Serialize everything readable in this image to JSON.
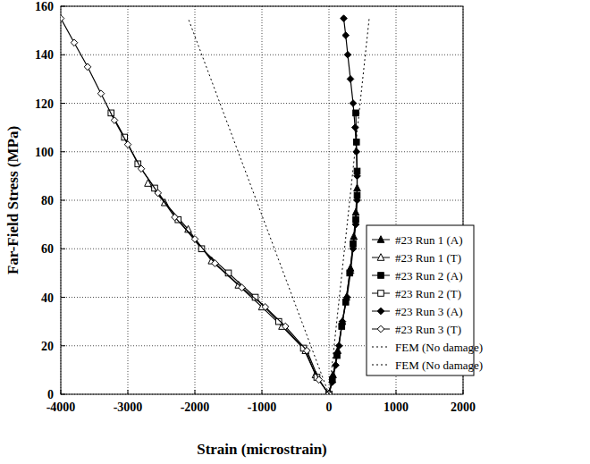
{
  "chart_data": {
    "type": "line",
    "x_label": "Strain (microstrain)",
    "y_label": "Far-Field Stress (MPa)",
    "xlim": [
      -4000,
      2000
    ],
    "xticks": [
      -4000,
      -3000,
      -2000,
      -1000,
      0,
      1000,
      2000
    ],
    "ylim": [
      0,
      160
    ],
    "yticks": [
      0,
      20,
      40,
      60,
      80,
      100,
      120,
      140,
      160
    ],
    "grid": true,
    "legend": "lower right",
    "series": [
      {
        "name": "#23 Run 1 (A)",
        "color": "#000000",
        "marker": "triangle",
        "line_style": "solid",
        "x": [
          0,
          60,
          130,
          200,
          260,
          320,
          370,
          400,
          420
        ],
        "values": [
          0,
          8,
          18,
          30,
          40,
          52,
          65,
          75,
          85
        ]
      },
      {
        "name": "#23 Run 1 (T)",
        "color": "#000000",
        "marker": "triangle-open",
        "line_style": "solid",
        "x": [
          0,
          -200,
          -350,
          -700,
          -1000,
          -1350,
          -1750,
          -2100,
          -2450,
          -2700
        ],
        "values": [
          0,
          8,
          18,
          28,
          36,
          45,
          55,
          68,
          79,
          87
        ]
      },
      {
        "name": "#23 Run 2 (A)",
        "color": "#000000",
        "marker": "square",
        "line_style": "solid",
        "x": [
          0,
          50,
          120,
          190,
          250,
          310,
          360,
          400,
          420,
          420,
          410,
          400
        ],
        "values": [
          0,
          6,
          16,
          28,
          38,
          50,
          62,
          72,
          82,
          92,
          104,
          116
        ]
      },
      {
        "name": "#23 Run 2 (T)",
        "color": "#000000",
        "marker": "square-open",
        "line_style": "solid",
        "x": [
          0,
          -180,
          -380,
          -750,
          -1100,
          -1500,
          -1900,
          -2250,
          -2600,
          -2850,
          -3050,
          -3250
        ],
        "values": [
          0,
          7,
          19,
          30,
          40,
          50,
          60,
          72,
          85,
          95,
          106,
          116
        ]
      },
      {
        "name": "#23 Run 3 (A)",
        "color": "#000000",
        "marker": "diamond",
        "line_style": "solid",
        "x": [
          0,
          50,
          100,
          150,
          200,
          270,
          320,
          360,
          400,
          420,
          420,
          410,
          390,
          360,
          320,
          280,
          250,
          220
        ],
        "values": [
          0,
          5,
          12,
          20,
          30,
          40,
          50,
          60,
          70,
          80,
          90,
          100,
          110,
          120,
          130,
          140,
          148,
          155
        ]
      },
      {
        "name": "#23 Run 3 (T)",
        "color": "#000000",
        "marker": "diamond-open",
        "line_style": "solid",
        "x": [
          0,
          -150,
          -330,
          -650,
          -950,
          -1300,
          -1700,
          -2000,
          -2300,
          -2550,
          -2800,
          -3000,
          -3200,
          -3400,
          -3600,
          -3800,
          -4000
        ],
        "values": [
          0,
          6,
          18,
          28,
          36,
          44,
          54,
          64,
          73,
          83,
          93,
          103,
          113,
          124,
          135,
          145,
          155
        ]
      },
      {
        "name": "FEM (No damage)",
        "color": "#000000",
        "marker": "none",
        "line_style": "dotted",
        "x": [
          0,
          -2100
        ],
        "values": [
          0,
          155
        ]
      },
      {
        "name": "FEM (No damage)",
        "color": "#000000",
        "marker": "none",
        "line_style": "dotted",
        "x": [
          0,
          600
        ],
        "values": [
          0,
          155
        ]
      }
    ]
  }
}
